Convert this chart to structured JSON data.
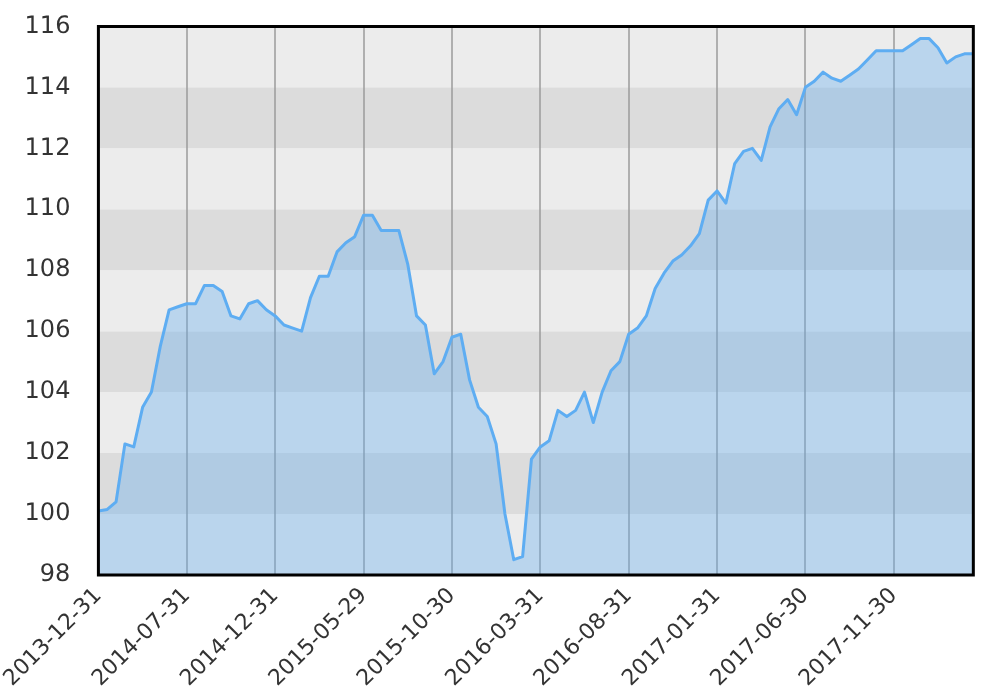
{
  "chart_data": {
    "type": "area",
    "categories": [
      "2013-12-31",
      null,
      null,
      null,
      null,
      null,
      null,
      null,
      null,
      null,
      "2014-07-31",
      null,
      null,
      null,
      null,
      null,
      null,
      null,
      null,
      null,
      "2014-12-31",
      null,
      null,
      null,
      null,
      null,
      null,
      null,
      null,
      null,
      "2015-05-29",
      null,
      null,
      null,
      null,
      null,
      null,
      null,
      null,
      null,
      "2015-10-30",
      null,
      null,
      null,
      null,
      null,
      null,
      null,
      null,
      null,
      "2016-03-31",
      null,
      null,
      null,
      null,
      null,
      null,
      null,
      null,
      null,
      "2016-08-31",
      null,
      null,
      null,
      null,
      null,
      null,
      null,
      null,
      null,
      "2017-01-31",
      null,
      null,
      null,
      null,
      null,
      null,
      null,
      null,
      null,
      "2017-06-30",
      null,
      null,
      null,
      null,
      null,
      null,
      null,
      null,
      null,
      "2017-11-30",
      null,
      null,
      null,
      null,
      null,
      null,
      null,
      null,
      null
    ],
    "series": [
      {
        "color": "#5eadf2",
        "values": [
          100.1,
          100.15,
          100.4,
          102.3,
          102.2,
          103.5,
          104.0,
          105.5,
          106.7,
          106.8,
          106.9,
          106.9,
          107.5,
          107.5,
          107.3,
          106.5,
          106.4,
          106.9,
          107.0,
          106.7,
          106.5,
          106.2,
          106.1,
          106.0,
          107.1,
          107.8,
          107.8,
          108.6,
          108.9,
          109.1,
          109.8,
          109.8,
          109.3,
          109.3,
          109.3,
          108.2,
          106.5,
          106.2,
          104.6,
          105.0,
          105.8,
          105.9,
          104.4,
          103.5,
          103.2,
          102.3,
          100.0,
          98.5,
          98.6,
          101.8,
          102.2,
          102.4,
          103.4,
          103.2,
          103.4,
          104.0,
          103.0,
          104.0,
          104.7,
          105.0,
          105.9,
          106.1,
          106.5,
          107.4,
          107.9,
          108.3,
          108.5,
          108.8,
          109.2,
          110.3,
          110.6,
          110.2,
          111.5,
          111.9,
          112.0,
          111.6,
          112.7,
          113.3,
          113.6,
          113.1,
          114.0,
          114.2,
          114.5,
          114.3,
          114.2,
          114.4,
          114.6,
          114.9,
          115.2,
          115.2,
          115.2,
          115.2,
          115.4,
          115.6,
          115.6,
          115.3,
          114.8,
          115.0,
          115.1,
          115.1
        ]
      }
    ],
    "ylim": [
      98,
      116
    ],
    "yticks": [
      98,
      100,
      102,
      104,
      106,
      108,
      110,
      112,
      114,
      116
    ],
    "grid": true,
    "legend": false,
    "marker": "none",
    "line_style": "solid"
  }
}
